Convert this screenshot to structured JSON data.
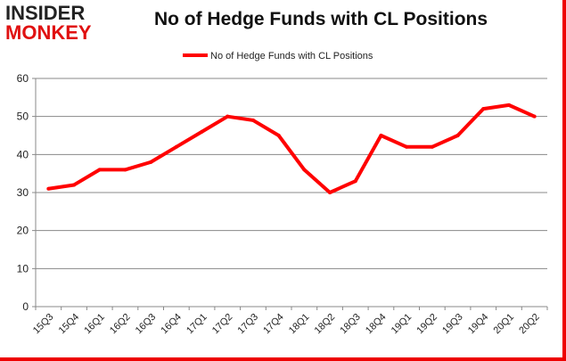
{
  "logo": {
    "line1": "INSIDER",
    "line2": "MONKEY"
  },
  "chart_data": {
    "type": "line",
    "title": "No of Hedge Funds with CL Positions",
    "categories": [
      "15Q3",
      "15Q4",
      "16Q1",
      "16Q2",
      "16Q3",
      "16Q4",
      "17Q1",
      "17Q2",
      "17Q3",
      "17Q4",
      "18Q1",
      "18Q2",
      "18Q3",
      "18Q4",
      "19Q1",
      "19Q2",
      "19Q3",
      "19Q4",
      "20Q1",
      "20Q2"
    ],
    "series": [
      {
        "name": "No of Hedge Funds with CL Positions",
        "color": "#ff0000",
        "values": [
          31,
          32,
          36,
          36,
          38,
          42,
          46,
          50,
          49,
          45,
          36,
          30,
          33,
          45,
          42,
          42,
          45,
          52,
          53,
          50
        ]
      }
    ],
    "yticks": [
      "0",
      "10",
      "20",
      "30",
      "40",
      "50",
      "60"
    ],
    "ylim": [
      0,
      60
    ],
    "grid": true,
    "legend": "top-center",
    "xlabel": "",
    "ylabel": ""
  }
}
